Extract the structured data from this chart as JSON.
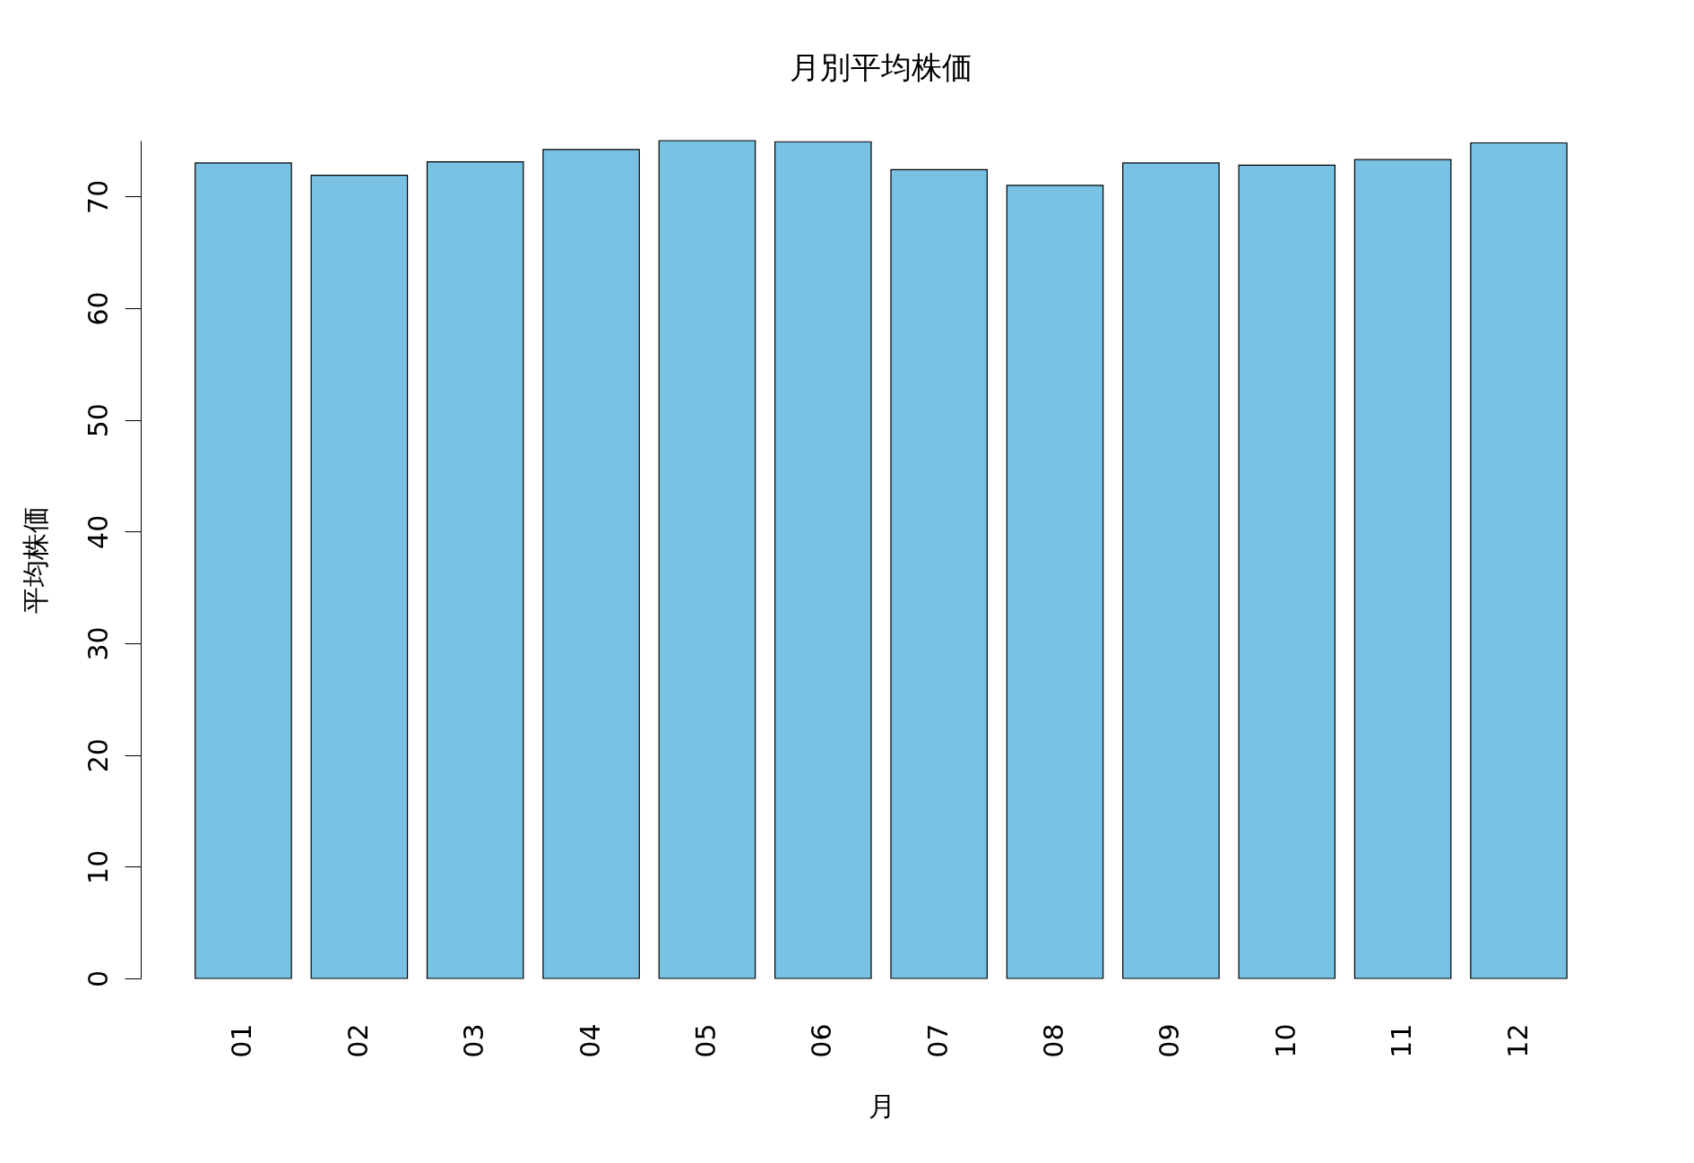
{
  "chart_data": {
    "type": "bar",
    "title": "月別平均株価",
    "xlabel": "月",
    "ylabel": "平均株価",
    "categories": [
      "01",
      "02",
      "03",
      "04",
      "05",
      "06",
      "07",
      "08",
      "09",
      "10",
      "11",
      "12"
    ],
    "values": [
      73.0,
      71.9,
      73.1,
      74.2,
      75.0,
      74.9,
      72.4,
      71.0,
      73.0,
      72.8,
      73.3,
      74.8
    ],
    "color": "#7ac2e4",
    "ylim": [
      0,
      75
    ],
    "yticks": [
      0,
      10,
      20,
      30,
      40,
      50,
      60,
      70
    ]
  }
}
